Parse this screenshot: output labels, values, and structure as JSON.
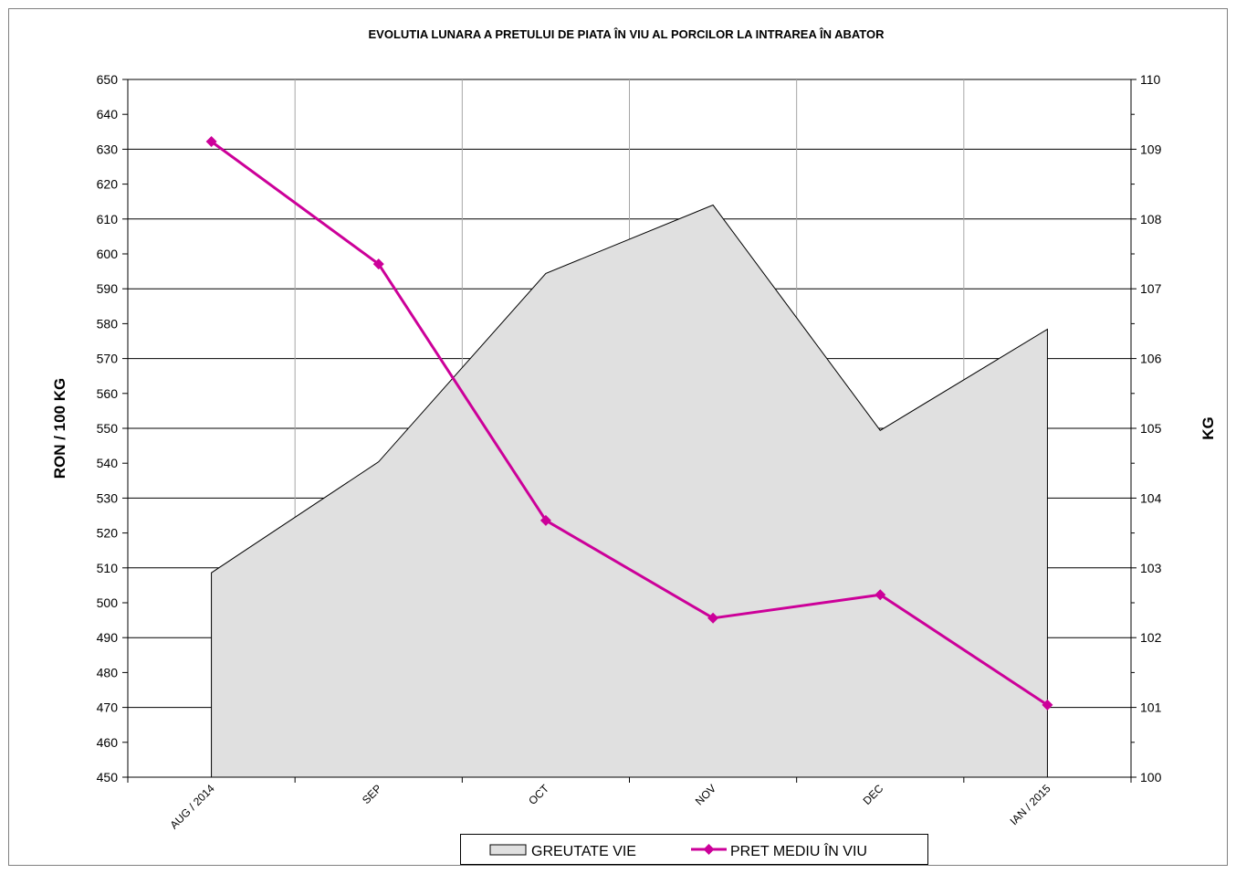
{
  "chart_data": {
    "type": "line",
    "title": "EVOLUTIA LUNARA A PRETULUI  DE PIATA  ÎN VIU AL PORCILOR  LA INTRAREA ÎN ABATOR",
    "categories": [
      "AUG / 2014",
      "SEP",
      "OCT",
      "NOV",
      "DEC",
      "IAN / 2015"
    ],
    "ylabel": "RON / 100 KG",
    "ylabel_right": "KG",
    "ylim": [
      450,
      650
    ],
    "y_ticks": [
      "450",
      "460",
      "470",
      "480",
      "490",
      "500",
      "510",
      "520",
      "530",
      "540",
      "550",
      "560",
      "570",
      "580",
      "590",
      "600",
      "610",
      "620",
      "630",
      "640",
      "650"
    ],
    "ylim_right": [
      100,
      110
    ],
    "y_ticks_right": [
      "100",
      "101",
      "102",
      "103",
      "104",
      "105",
      "106",
      "107",
      "108",
      "109",
      "110"
    ],
    "grid": true,
    "legend_position": "bottom",
    "series": [
      {
        "name": "GREUTATE  VIE",
        "type": "area",
        "axis": "right",
        "color": "#e0e0e0",
        "values": [
          102.93,
          104.52,
          107.22,
          108.2,
          104.97,
          106.42
        ]
      },
      {
        "name": "PRET MEDIU ÎN VIU",
        "type": "line",
        "axis": "left",
        "color": "#cc0099",
        "values": [
          632.2,
          597.1,
          523.6,
          495.6,
          502.3,
          470.7
        ]
      }
    ]
  }
}
